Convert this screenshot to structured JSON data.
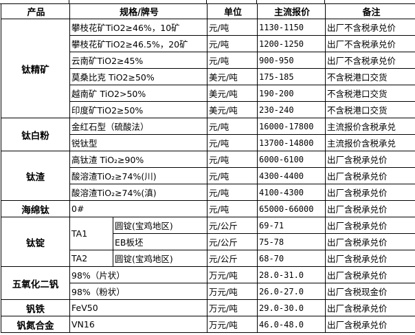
{
  "headers": [
    "产品",
    "规格/牌号",
    "单位",
    "主流报价",
    "备注"
  ],
  "groups": [
    {
      "product": "钛精矿",
      "rows": [
        {
          "spec": "攀枝花矿TiO2≥46%，10矿",
          "unit": "元/吨",
          "price": "1130-1150",
          "note": "出厂不含税承兑价"
        },
        {
          "spec": "攀枝花矿TiO2≥46.5%，20矿",
          "unit": "元/吨",
          "price": "1200-1250",
          "note": "出厂不含税承兑价"
        },
        {
          "spec": "云南矿TiO2≥45%",
          "unit": "元/吨",
          "price": "900-950",
          "note": "出厂不含税承兑价"
        },
        {
          "spec": "莫桑比克 TiO2≥50%",
          "unit": "美元/吨",
          "price": "175-185",
          "note": "不含税港口交货"
        },
        {
          "spec": "越南矿 TiO2>50%",
          "unit": "美元/吨",
          "price": "190-200",
          "note": "不含税港口交货"
        },
        {
          "spec": "印度矿TiO2≥50%",
          "unit": "美元/吨",
          "price": "230-240",
          "note": "不含税港口交货"
        }
      ]
    },
    {
      "product": "钛白粉",
      "rows": [
        {
          "spec": "金红石型（硫酸法）",
          "unit": "元/吨",
          "price": "16000-17800",
          "note": "主流报价含税承兑"
        },
        {
          "spec": "锐钛型",
          "unit": "元/吨",
          "price": "13700-14800",
          "note": "主流报价含税承兑"
        }
      ]
    },
    {
      "product": "钛渣",
      "rows": [
        {
          "spec": "高钛渣 TiO₂≥90%",
          "unit": "元/吨",
          "price": "6000-6100",
          "note": "出厂含税承兑价"
        },
        {
          "spec": "酸溶渣TiO₂≥74%(川)",
          "unit": "元/吨",
          "price": "4300-4400",
          "note": "出厂含税承兑价"
        },
        {
          "spec": "酸溶渣TiO₂≥74%(滇)",
          "unit": "元/吨",
          "price": "4100-4300",
          "note": "出厂含税承兑价"
        }
      ]
    },
    {
      "product": "海绵钛",
      "rows": [
        {
          "spec": "0#",
          "unit": "元/吨",
          "price": "65000-66000",
          "note": "出厂含税承兑价"
        }
      ]
    },
    {
      "product": "钛锭",
      "rows": [
        {
          "grade": "TA1",
          "grade_span": 2,
          "spec": "圆锭(宝鸡地区)",
          "unit": "元/公斤",
          "price": "69-71",
          "note": "出厂含税承兑价"
        },
        {
          "spec": "EB板坯",
          "unit": "元/公斤",
          "price": "75-78",
          "note": "出厂含税承兑价"
        },
        {
          "grade": "TA2",
          "grade_span": 1,
          "spec": "圆锭(宝鸡地区)",
          "unit": "元/公斤",
          "price": "68-70",
          "note": "出厂含税承兑价"
        }
      ]
    },
    {
      "product": "五氧化二钒",
      "rows": [
        {
          "spec": "98%（片状）",
          "unit": "万元/吨",
          "price": "28.0-31.0",
          "note": "出厂含税承兑价"
        },
        {
          "spec": "98%（粉状）",
          "unit": "万元/吨",
          "price": "26.0-27.0",
          "note": "出厂含税现金价"
        }
      ]
    },
    {
      "product": "钒铁",
      "rows": [
        {
          "spec": "FeV50",
          "unit": "万元/吨",
          "price": "29.0-30.0",
          "note": "出厂含税承兑价"
        }
      ]
    },
    {
      "product": "钒氮合金",
      "rows": [
        {
          "spec": "VN16",
          "unit": "万元/吨",
          "price": "46.0-48.0",
          "note": "出厂含税承兑价"
        }
      ]
    }
  ]
}
